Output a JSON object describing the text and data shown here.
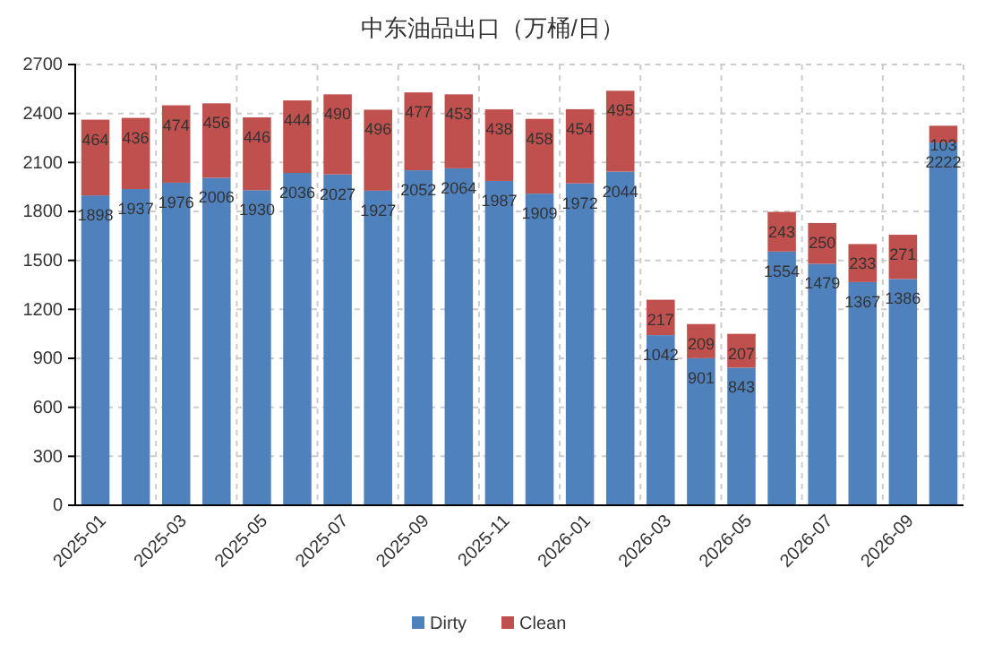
{
  "chart_data": {
    "type": "bar",
    "title": "中东油品出口（万桶/日）",
    "stacked": true,
    "data_labels": true,
    "grid": true,
    "legend": "bottom",
    "categories": [
      "2025-01",
      null,
      "2025-03",
      null,
      "2025-05",
      null,
      "2025-07",
      null,
      "2025-09",
      null,
      "2025-11",
      null,
      "2026-01",
      null,
      "2026-03",
      null,
      "2026-05",
      null,
      "2026-07",
      null,
      "2026-09",
      null
    ],
    "ylim": [
      0,
      2700
    ],
    "yticks": [
      0,
      300,
      600,
      900,
      1200,
      1500,
      1800,
      2100,
      2400,
      2700
    ],
    "series": [
      {
        "name": "Dirty",
        "color": "#4f81bd",
        "values": [
          1898,
          1937,
          1976,
          2006,
          1930,
          2036,
          2027,
          1927,
          2052,
          2064,
          1987,
          1909,
          1972,
          2044,
          1042,
          901,
          843,
          1554,
          1479,
          1367,
          1386,
          2222
        ]
      },
      {
        "name": "Clean",
        "color": "#c0504d",
        "values": [
          464,
          436,
          474,
          456,
          446,
          444,
          490,
          496,
          477,
          453,
          438,
          458,
          454,
          495,
          217,
          209,
          207,
          243,
          250,
          233,
          271,
          103
        ]
      }
    ]
  }
}
